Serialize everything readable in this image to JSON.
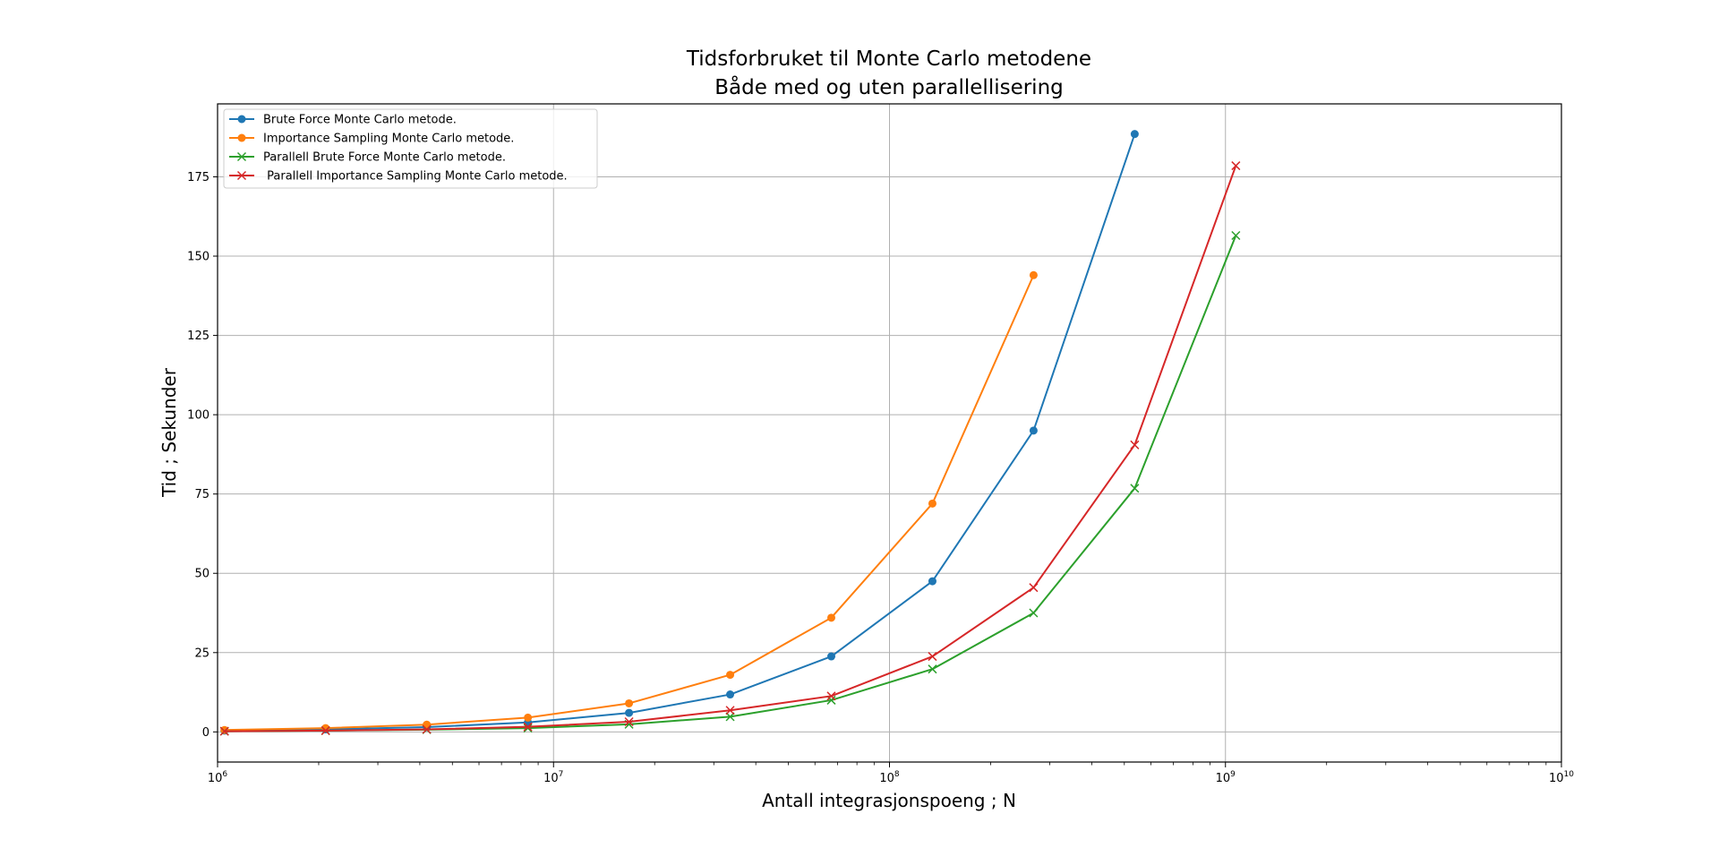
{
  "chart_data": {
    "type": "line",
    "title_line1": "Tidsforbruket til Monte Carlo metodene",
    "title_line2": "Både med og uten parallellisering",
    "xlabel": "Antall integrasjonspoeng ; N",
    "ylabel": "Tid ; Sekunder",
    "xscale": "log",
    "xlim": [
      1000000,
      10000000000
    ],
    "ylim": [
      -9.5,
      198
    ],
    "grid": true,
    "legend_position": "upper left",
    "x_ticks": [
      {
        "value": 1000000,
        "base": "10",
        "exp": "6"
      },
      {
        "value": 10000000,
        "base": "10",
        "exp": "7"
      },
      {
        "value": 100000000,
        "base": "10",
        "exp": "8"
      },
      {
        "value": 1000000000,
        "base": "10",
        "exp": "9"
      },
      {
        "value": 10000000000,
        "base": "10",
        "exp": "10"
      }
    ],
    "y_ticks": [
      {
        "value": 0,
        "label": "0"
      },
      {
        "value": 25,
        "label": "25"
      },
      {
        "value": 50,
        "label": "50"
      },
      {
        "value": 75,
        "label": "75"
      },
      {
        "value": 100,
        "label": "100"
      },
      {
        "value": 125,
        "label": "125"
      },
      {
        "value": 150,
        "label": "150"
      },
      {
        "value": 175,
        "label": "175"
      }
    ],
    "series": [
      {
        "name": "Brute Force Monte Carlo metode.",
        "color": "#1f77b4",
        "marker": "circle",
        "x": [
          1048576,
          2097152,
          4194304,
          8388608,
          16777216,
          33554432,
          67108864,
          134217728,
          268435456,
          536870912
        ],
        "y": [
          0.4,
          0.8,
          1.5,
          3.0,
          6.0,
          11.8,
          23.8,
          47.5,
          95.0,
          188.5
        ]
      },
      {
        "name": "Importance Sampling Monte Carlo metode.",
        "color": "#ff7f0e",
        "marker": "circle",
        "x": [
          1048576,
          2097152,
          4194304,
          8388608,
          16777216,
          33554432,
          67108864,
          134217728,
          268435456
        ],
        "y": [
          0.6,
          1.2,
          2.3,
          4.5,
          9.0,
          18.0,
          36.0,
          72.0,
          144.0
        ]
      },
      {
        "name": "Parallell Brute Force Monte Carlo metode.",
        "color": "#2ca02c",
        "marker": "x",
        "x": [
          1048576,
          2097152,
          4194304,
          8388608,
          16777216,
          33554432,
          67108864,
          134217728,
          268435456,
          536870912,
          1073741824
        ],
        "y": [
          0.2,
          0.4,
          0.7,
          1.2,
          2.4,
          4.8,
          10.0,
          19.8,
          37.5,
          76.8,
          156.5
        ]
      },
      {
        "name": " Parallell Importance Sampling Monte Carlo metode.",
        "color": "#d62728",
        "marker": "x",
        "x": [
          1048576,
          2097152,
          4194304,
          8388608,
          16777216,
          33554432,
          67108864,
          134217728,
          268435456,
          536870912,
          1073741824
        ],
        "y": [
          0.2,
          0.4,
          0.8,
          1.6,
          3.2,
          6.8,
          11.3,
          23.8,
          45.5,
          90.5,
          178.5
        ]
      }
    ]
  }
}
